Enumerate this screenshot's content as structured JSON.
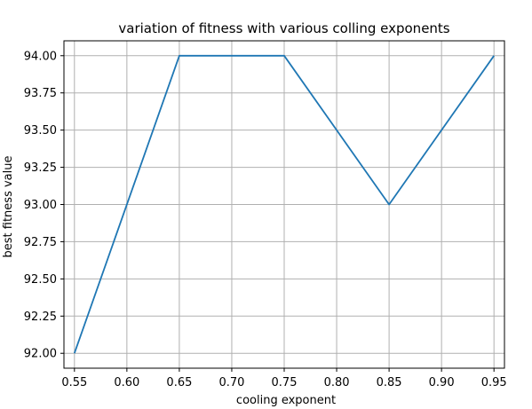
{
  "chart_data": {
    "type": "line",
    "title": "variation of fitness with various colling exponents",
    "xlabel": "cooling exponent",
    "ylabel": "best fitness value",
    "x": [
      0.55,
      0.65,
      0.75,
      0.85,
      0.95
    ],
    "series": [
      {
        "values": [
          92.0,
          94.0,
          94.0,
          93.0,
          94.0
        ]
      }
    ],
    "xticks": [
      "0.55",
      "0.60",
      "0.65",
      "0.70",
      "0.75",
      "0.80",
      "0.85",
      "0.90",
      "0.95"
    ],
    "yticks": [
      "92.00",
      "92.25",
      "92.50",
      "92.75",
      "93.00",
      "93.25",
      "93.50",
      "93.75",
      "94.00"
    ],
    "xlim": [
      0.54,
      0.96
    ],
    "ylim": [
      91.9,
      94.1
    ],
    "grid": true,
    "colors": {
      "line": "#1f77b4",
      "grid": "#b0b0b0",
      "axes": "#000000"
    }
  }
}
